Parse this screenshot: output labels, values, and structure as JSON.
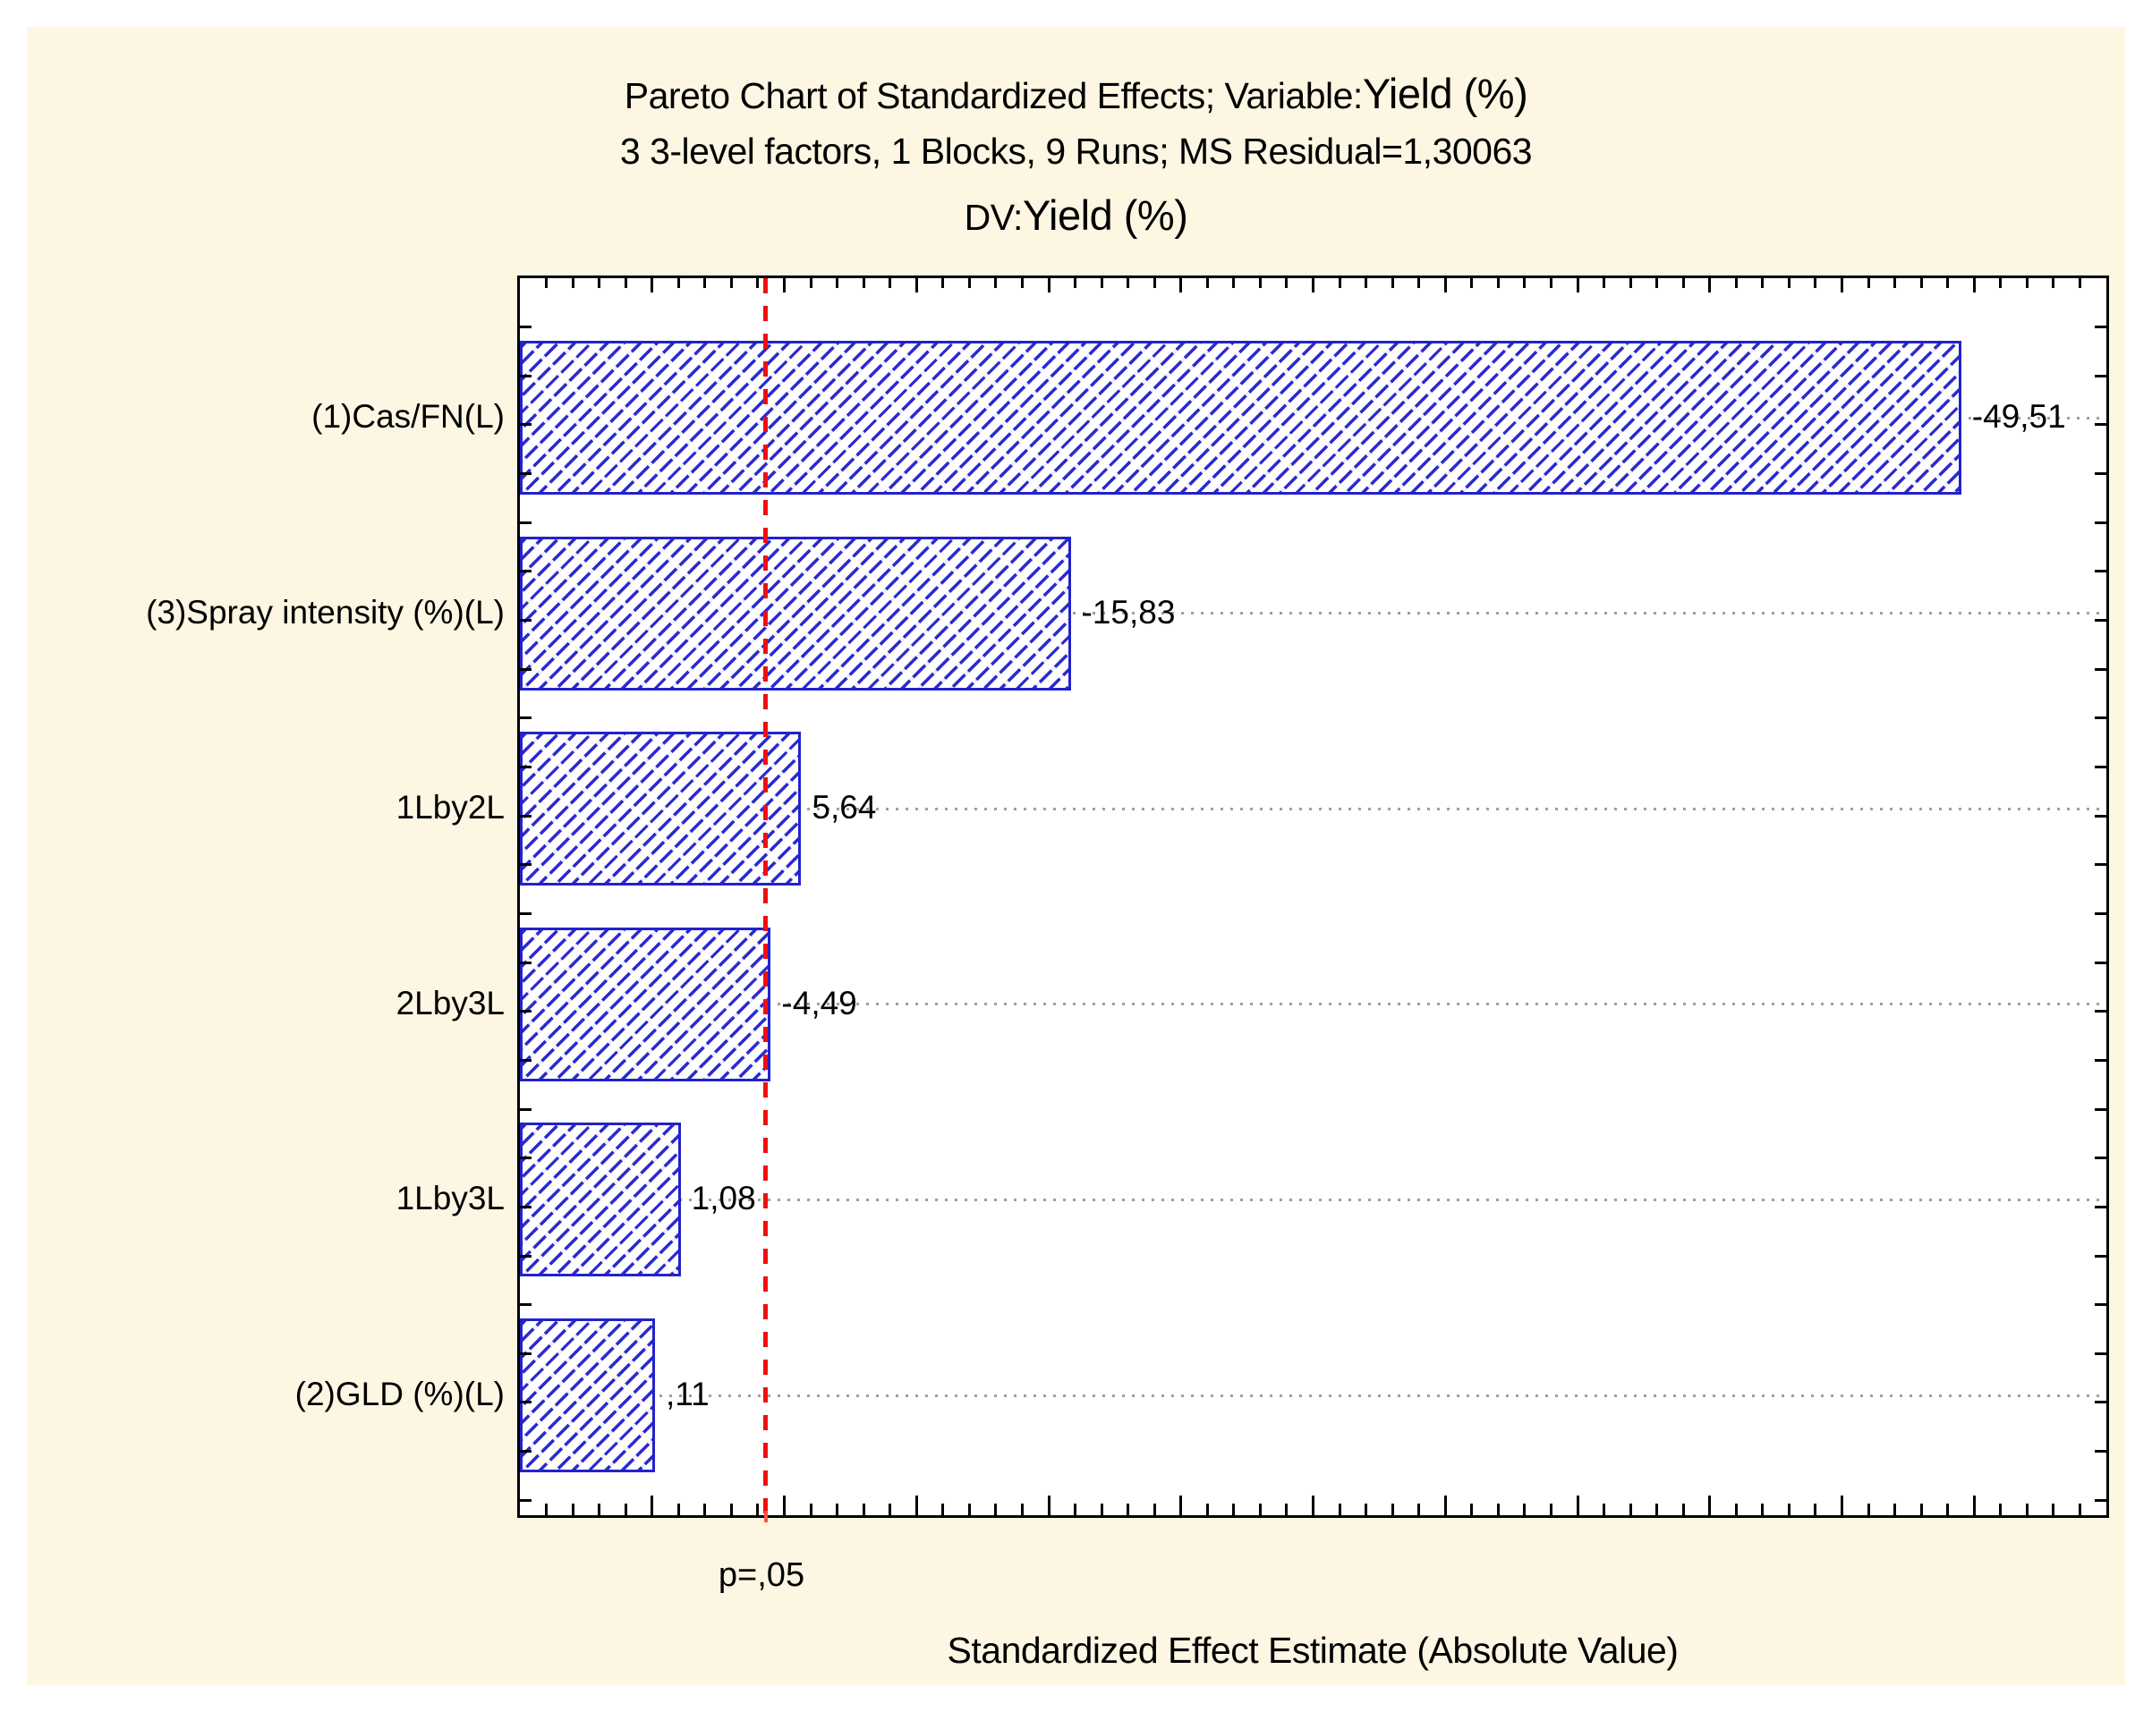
{
  "chart_data": {
    "type": "bar",
    "orientation": "horizontal",
    "chart_kind": "pareto-of-standardized-effects",
    "title": {
      "line1_prefix": "Pareto Chart of Standardized Effects; Variable:",
      "line1_variable": "Yield (%)",
      "line2": "3 3-level factors, 1 Blocks, 9 Runs; MS Residual=1,30063",
      "line3_prefix": "DV:",
      "line3_variable": "Yield (%)"
    },
    "xlabel": "Standardized Effect Estimate (Absolute Value)",
    "categories": [
      "(1)Cas/FN(L)",
      "(3)Spray intensity (%)(L)",
      "1Lby2L",
      "2Lby3L",
      "1Lby3L",
      "(2)GLD (%)(L)"
    ],
    "values": [
      -49.51,
      -15.83,
      5.64,
      -4.49,
      1.08,
      0.11
    ],
    "value_labels": [
      "-49,51",
      "-15,83",
      "5,64",
      "-4,49",
      "1,08",
      ",11"
    ],
    "bars_show": "absolute value",
    "xlim": [
      -5,
      55
    ],
    "x_minor_step": 1,
    "x_major_step": 5,
    "grid": "dotted horizontal line at each bar center",
    "legend_position": "none",
    "significance_line": {
      "value": 4.3,
      "label": "p=,05",
      "color": "#ff0000"
    },
    "colors": {
      "panel_background": "#fcf6e3",
      "plot_background": "#ffffff",
      "bar_edge": "#2222cb",
      "bar_hatch": "#2b2bd0",
      "axis": "#000000",
      "gridline": "#9e9e9e",
      "significance": "#f20d0d",
      "text": "#000000"
    }
  }
}
